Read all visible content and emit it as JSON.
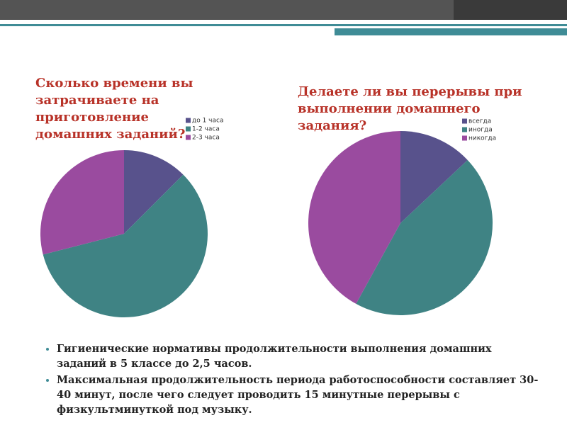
{
  "chart_data": [
    {
      "type": "pie",
      "title": "Сколько времени вы затрачиваете на приготовление домашних заданий?",
      "categories": [
        "до 1 часа",
        "1-2 часа",
        "2-3 часа"
      ],
      "values": [
        12.5,
        58.5,
        29
      ],
      "colors": [
        "#58528c",
        "#3f8384",
        "#9a4b9f"
      ]
    },
    {
      "type": "pie",
      "title": "Делаете ли вы перерывы при выполнении домашнего задания?",
      "categories": [
        "всегда",
        "иногда",
        "никогда"
      ],
      "values": [
        13,
        45,
        42
      ],
      "colors": [
        "#58528c",
        "#3f8384",
        "#9a4b9f"
      ]
    }
  ],
  "bullets": [
    "Гигиенические нормативы продолжительности выполнения домашних заданий в 5 классе до 2,5 часов.",
    "Максимальная продолжительность периода работоспособности составляет 30-40 минут, после чего следует проводить 15 минутные перерывы с физкультминуткой под музыку."
  ]
}
